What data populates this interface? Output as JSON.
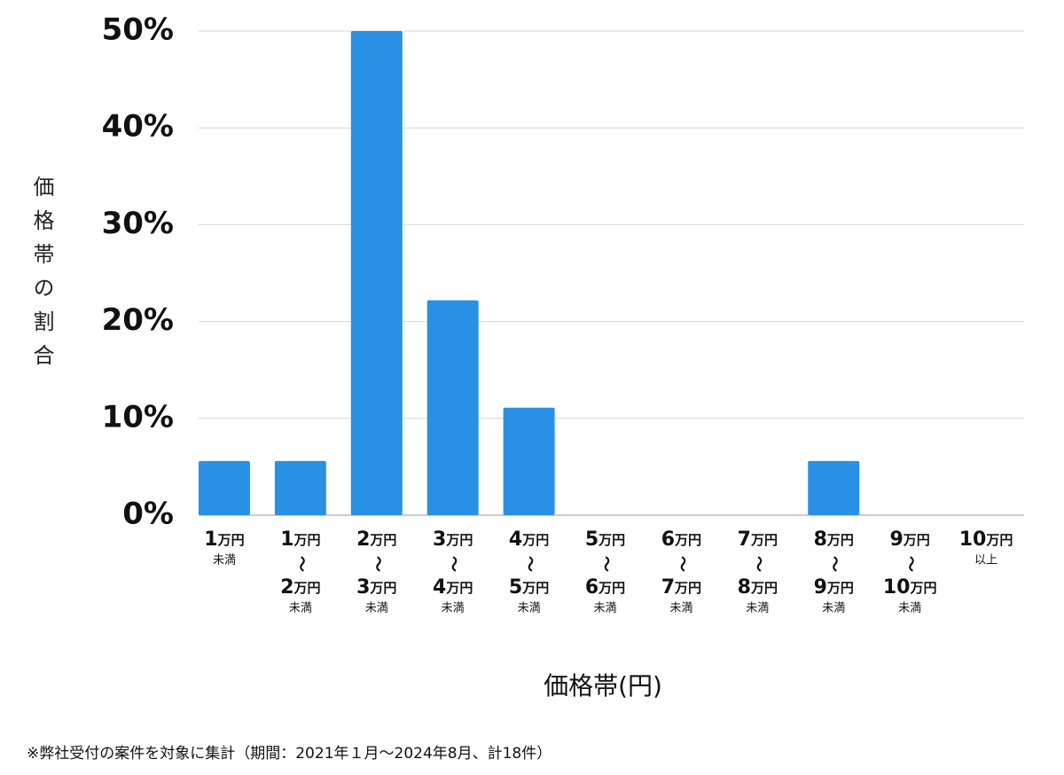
{
  "chart_data": {
    "type": "bar",
    "y_label": "価格帯の割合",
    "x_label": "価格帯(円)",
    "footnote": "※弊社受付の案件を対象に集計（期間：2021年１月〜2024年8月、計18件）",
    "categories": [
      [
        "1万円",
        "未満"
      ],
      [
        "1万円",
        "〜",
        "2万円",
        "未満"
      ],
      [
        "2万円",
        "〜",
        "3万円",
        "未満"
      ],
      [
        "3万円",
        "〜",
        "4万円",
        "未満"
      ],
      [
        "4万円",
        "〜",
        "5万円",
        "未満"
      ],
      [
        "5万円",
        "〜",
        "6万円",
        "未満"
      ],
      [
        "6万円",
        "〜",
        "7万円",
        "未満"
      ],
      [
        "7万円",
        "〜",
        "8万円",
        "未満"
      ],
      [
        "8万円",
        "〜",
        "9万円",
        "未満"
      ],
      [
        "9万円",
        "〜",
        "10万円",
        "未満"
      ],
      [
        "10万円",
        "以上"
      ]
    ],
    "values": [
      5.6,
      5.6,
      50,
      22.2,
      11.1,
      0,
      0,
      0,
      5.6,
      0,
      0
    ],
    "color": "#2891e6",
    "ylim": [
      0,
      50
    ],
    "yticks": [
      {
        "value": 0,
        "label": "0%"
      },
      {
        "value": 10,
        "label": "10%"
      },
      {
        "value": 20,
        "label": "20%"
      },
      {
        "value": 30,
        "label": "30%"
      },
      {
        "value": 40,
        "label": "40%"
      },
      {
        "value": 50,
        "label": "50%"
      }
    ],
    "grid": true
  }
}
